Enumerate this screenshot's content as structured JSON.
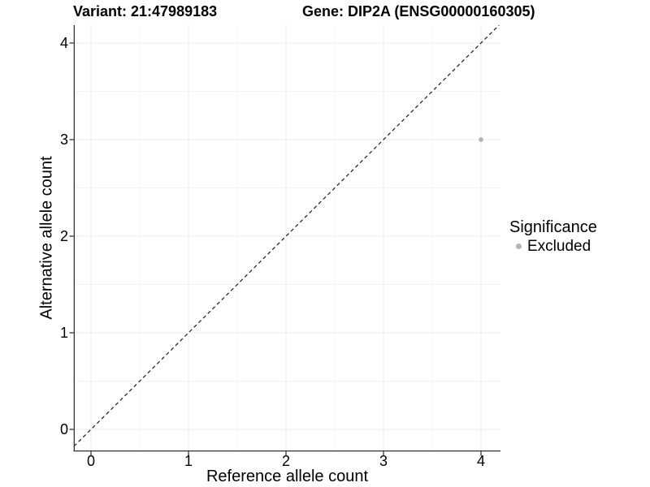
{
  "header": {
    "variant_title": "Variant: 21:47989183",
    "gene_title": "Gene: DIP2A (ENSG00000160305)"
  },
  "axes": {
    "x": {
      "label": "Reference allele count",
      "tick_labels": [
        "0",
        "1",
        "2",
        "3",
        "4"
      ]
    },
    "y": {
      "label": "Alternative allele count",
      "tick_labels": [
        "0",
        "1",
        "2",
        "3",
        "4"
      ]
    }
  },
  "legend": {
    "title": "Significance",
    "items": [
      {
        "label": "Excluded",
        "color": "#b4b4b4"
      }
    ]
  },
  "colors": {
    "background": "#ffffff",
    "text": "#000000",
    "grid_major": "#ebebeb",
    "grid_minor": "#f3f3f3",
    "axis_line": "#333333",
    "dashed_line": "#1a1a1a",
    "point": "#b4b4b4"
  },
  "chart_data": {
    "type": "scatter",
    "title": "Variant: 21:47989183    Gene: DIP2A (ENSG00000160305)",
    "xlabel": "Reference allele count",
    "ylabel": "Alternative allele count",
    "xlim": [
      -0.2,
      4.2
    ],
    "ylim": [
      -0.2,
      4.2
    ],
    "xticks": [
      0,
      1,
      2,
      3,
      4
    ],
    "yticks": [
      0,
      1,
      2,
      3,
      4
    ],
    "grid": "major and minor gridlines, white background",
    "legend_position": "right",
    "series": [
      {
        "name": "Excluded",
        "marker": "circle",
        "color": "#b4b4b4",
        "points": [
          [
            4,
            3
          ]
        ]
      }
    ],
    "reference_line": {
      "type": "identity",
      "slope": 1,
      "intercept": 0,
      "style": "dashed",
      "color": "#1a1a1a"
    }
  }
}
